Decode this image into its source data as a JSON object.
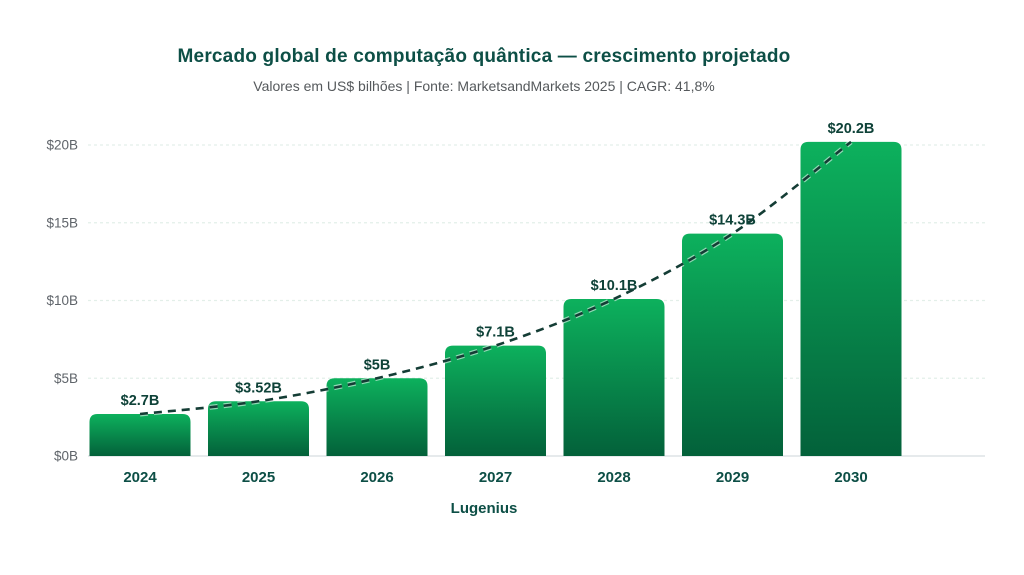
{
  "header": {
    "title": "Mercado global de computação quântica — crescimento projetado",
    "subtitle": "Valores em US$ bilhões  |  Fonte: MarketsandMarkets 2025  |  CAGR: 41,8%"
  },
  "footer": {
    "brand": "Lugenius"
  },
  "chart_data": {
    "type": "bar",
    "title": "Mercado global de computação quântica — crescimento projetado",
    "subtitle": "Valores em US$ bilhões | Fonte: MarketsandMarkets 2025 | CAGR: 41,8%",
    "categories": [
      "2024",
      "2025",
      "2026",
      "2027",
      "2028",
      "2029",
      "2030"
    ],
    "values": [
      2.7,
      3.52,
      5,
      7.1,
      10.1,
      14.3,
      20.2
    ],
    "value_labels": [
      "$2.7B",
      "$3.52B",
      "$5B",
      "$7.1B",
      "$10.1B",
      "$14.3B",
      "$20.2B"
    ],
    "y_ticks": [
      {
        "value": 0,
        "label": "$0B"
      },
      {
        "value": 5,
        "label": "$5B"
      },
      {
        "value": 10,
        "label": "$10B"
      },
      {
        "value": 15,
        "label": "$15B"
      },
      {
        "value": 20,
        "label": "$20B"
      }
    ],
    "ylim": [
      0,
      20
    ],
    "xlabel": "",
    "ylabel": "",
    "grid": true,
    "legend_position": "none",
    "trendline": "dashed smooth curve through bar tops"
  },
  "colors": {
    "title_text": "#0d4f46",
    "subtitle_text": "#55595c",
    "bar_gradient_top": "#0db15d",
    "bar_gradient_bottom": "#03613a",
    "trend_line": "#143d35",
    "trend_casing": "#ffffff",
    "value_label_text": "#0e4238",
    "year_label_text": "#0d4f46",
    "grid_line": "#e3efe9",
    "axis_line": "#d8dee1",
    "y_tick_text": "#5f646a",
    "brand_text": "#0d4f46"
  }
}
